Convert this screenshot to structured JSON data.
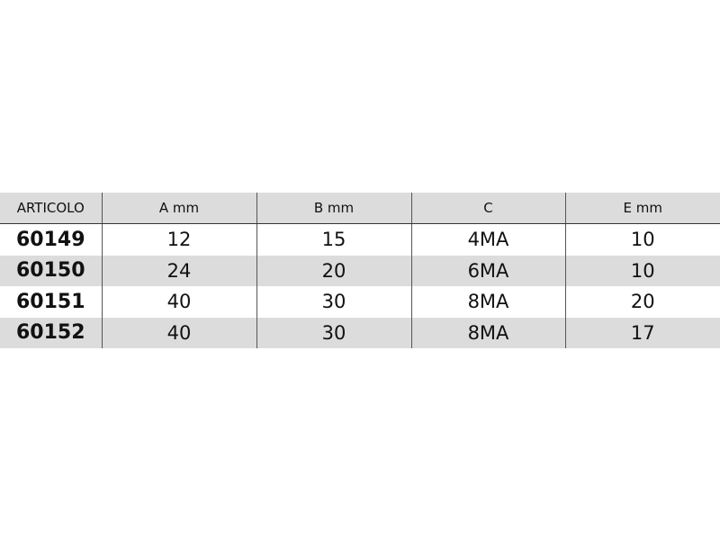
{
  "table": {
    "headers": [
      "ARTICOLO",
      "A mm",
      "B mm",
      "C",
      "E mm"
    ],
    "rows": [
      [
        "60149",
        "12",
        "15",
        "4MA",
        "10"
      ],
      [
        "60150",
        "24",
        "20",
        "6MA",
        "10"
      ],
      [
        "60151",
        "40",
        "30",
        "8MA",
        "20"
      ],
      [
        "60152",
        "40",
        "30",
        "8MA",
        "17"
      ]
    ],
    "stripe_color": "#dcdcdc"
  }
}
